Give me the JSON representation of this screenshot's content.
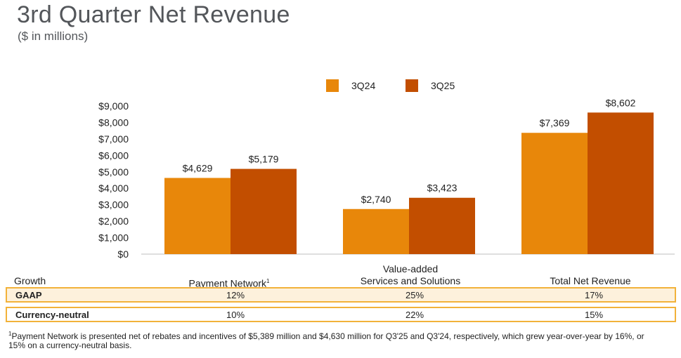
{
  "title": "3rd Quarter Net Revenue",
  "subtitle": "($ in millions)",
  "colors": {
    "series_3q24": "#e8870a",
    "series_3q25": "#c24e00",
    "table_border": "#f2b23a",
    "row_fill": "#fdf1dc"
  },
  "chart_data": {
    "type": "bar",
    "title": "3rd Quarter Net Revenue",
    "ylabel": "$ in millions",
    "ylim": [
      0,
      9000
    ],
    "yticks": [
      "$0",
      "$1,000",
      "$2,000",
      "$3,000",
      "$4,000",
      "$5,000",
      "$6,000",
      "$7,000",
      "$8,000",
      "$9,000"
    ],
    "categories": [
      "Payment Network",
      "Value-added Services and Solutions",
      "Total Net Revenue"
    ],
    "series": [
      {
        "name": "3Q24",
        "values": [
          4629,
          2740,
          7369
        ],
        "labels": [
          "$4,629",
          "$2,740",
          "$7,369"
        ]
      },
      {
        "name": "3Q25",
        "values": [
          5179,
          3423,
          8602
        ],
        "labels": [
          "$5,179",
          "$3,423",
          "$8,602"
        ]
      }
    ],
    "legend": "top-right"
  },
  "categories_display": {
    "payment_network": "Payment Network",
    "payment_network_sup": "1",
    "vas_line1": "Value-added",
    "vas_line2": "Services and Solutions",
    "total": "Total Net Revenue"
  },
  "growth_table": {
    "header": "Growth",
    "rows": [
      {
        "label": "GAAP",
        "values": [
          "12%",
          "25%",
          "17%"
        ]
      },
      {
        "label": "Currency-neutral",
        "values": [
          "10%",
          "22%",
          "15%"
        ]
      }
    ]
  },
  "footnote": {
    "marker": "1",
    "text": "Payment Network is presented net of rebates and incentives of $5,389 million and $4,630 million for Q3'25 and Q3'24, respectively, which grew year-over-year by 16%, or 15% on a currency-neutral basis."
  }
}
